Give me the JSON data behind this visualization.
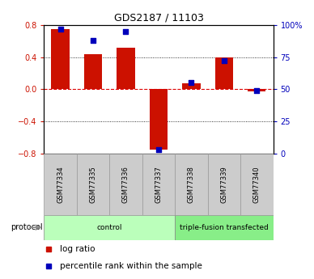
{
  "title": "GDS2187 / 11103",
  "samples": [
    "GSM77334",
    "GSM77335",
    "GSM77336",
    "GSM77337",
    "GSM77338",
    "GSM77339",
    "GSM77340"
  ],
  "log_ratio": [
    0.75,
    0.44,
    0.52,
    -0.75,
    0.07,
    0.4,
    -0.03
  ],
  "percentile_rank": [
    97,
    88,
    95,
    3,
    55,
    72,
    49
  ],
  "groups": [
    {
      "label": "control",
      "start": 0,
      "end": 4,
      "color": "#bbffbb"
    },
    {
      "label": "triple-fusion transfected",
      "start": 4,
      "end": 7,
      "color": "#88ee88"
    }
  ],
  "bar_color": "#cc1100",
  "dot_color": "#0000bb",
  "ylim_left": [
    -0.8,
    0.8
  ],
  "ylim_right": [
    0,
    100
  ],
  "yticks_left": [
    -0.8,
    -0.4,
    0.0,
    0.4,
    0.8
  ],
  "yticks_right": [
    0,
    25,
    50,
    75,
    100
  ],
  "ytick_labels_right": [
    "0",
    "25",
    "50",
    "75",
    "100%"
  ],
  "hline_color": "#dd0000",
  "grid_color": "#000000",
  "bg_color": "#ffffff",
  "legend_log_ratio_label": "log ratio",
  "legend_percentile_label": "percentile rank within the sample",
  "protocol_label": "protocol",
  "left_axis_color": "#cc1100",
  "right_axis_color": "#0000bb",
  "sample_box_color": "#cccccc",
  "sample_box_edge": "#999999"
}
